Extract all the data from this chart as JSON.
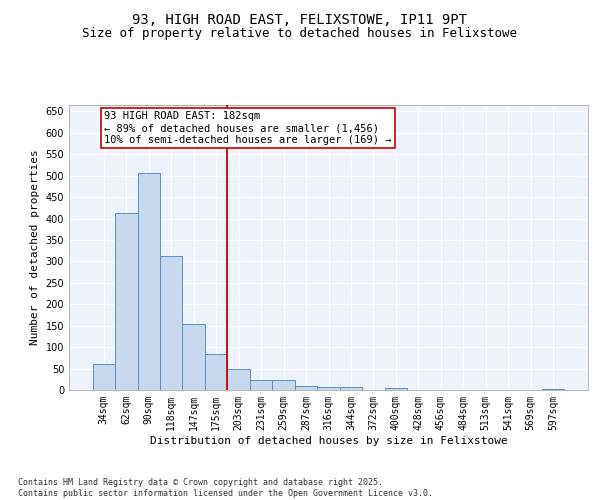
{
  "title_line1": "93, HIGH ROAD EAST, FELIXSTOWE, IP11 9PT",
  "title_line2": "Size of property relative to detached houses in Felixstowe",
  "xlabel": "Distribution of detached houses by size in Felixstowe",
  "ylabel": "Number of detached properties",
  "categories": [
    "34sqm",
    "62sqm",
    "90sqm",
    "118sqm",
    "147sqm",
    "175sqm",
    "203sqm",
    "231sqm",
    "259sqm",
    "287sqm",
    "316sqm",
    "344sqm",
    "372sqm",
    "400sqm",
    "428sqm",
    "456sqm",
    "484sqm",
    "513sqm",
    "541sqm",
    "569sqm",
    "597sqm"
  ],
  "values": [
    60,
    413,
    507,
    312,
    155,
    84,
    48,
    24,
    24,
    9,
    7,
    7,
    0,
    4,
    0,
    0,
    0,
    0,
    0,
    0,
    2
  ],
  "bar_color": "#c9d9ed",
  "bar_edge_color": "#5b8fc9",
  "vline_color": "#cc0000",
  "annotation_text": "93 HIGH ROAD EAST: 182sqm\n← 89% of detached houses are smaller (1,456)\n10% of semi-detached houses are larger (169) →",
  "annotation_box_edge": "#cc0000",
  "ylim": [
    0,
    665
  ],
  "yticks": [
    0,
    50,
    100,
    150,
    200,
    250,
    300,
    350,
    400,
    450,
    500,
    550,
    600,
    650
  ],
  "background_color": "#eef2fa",
  "grid_color": "#ffffff",
  "footer_text": "Contains HM Land Registry data © Crown copyright and database right 2025.\nContains public sector information licensed under the Open Government Licence v3.0.",
  "title_fontsize": 10,
  "subtitle_fontsize": 9,
  "axis_label_fontsize": 8,
  "tick_fontsize": 7,
  "annotation_fontsize": 7.5,
  "footer_fontsize": 6
}
